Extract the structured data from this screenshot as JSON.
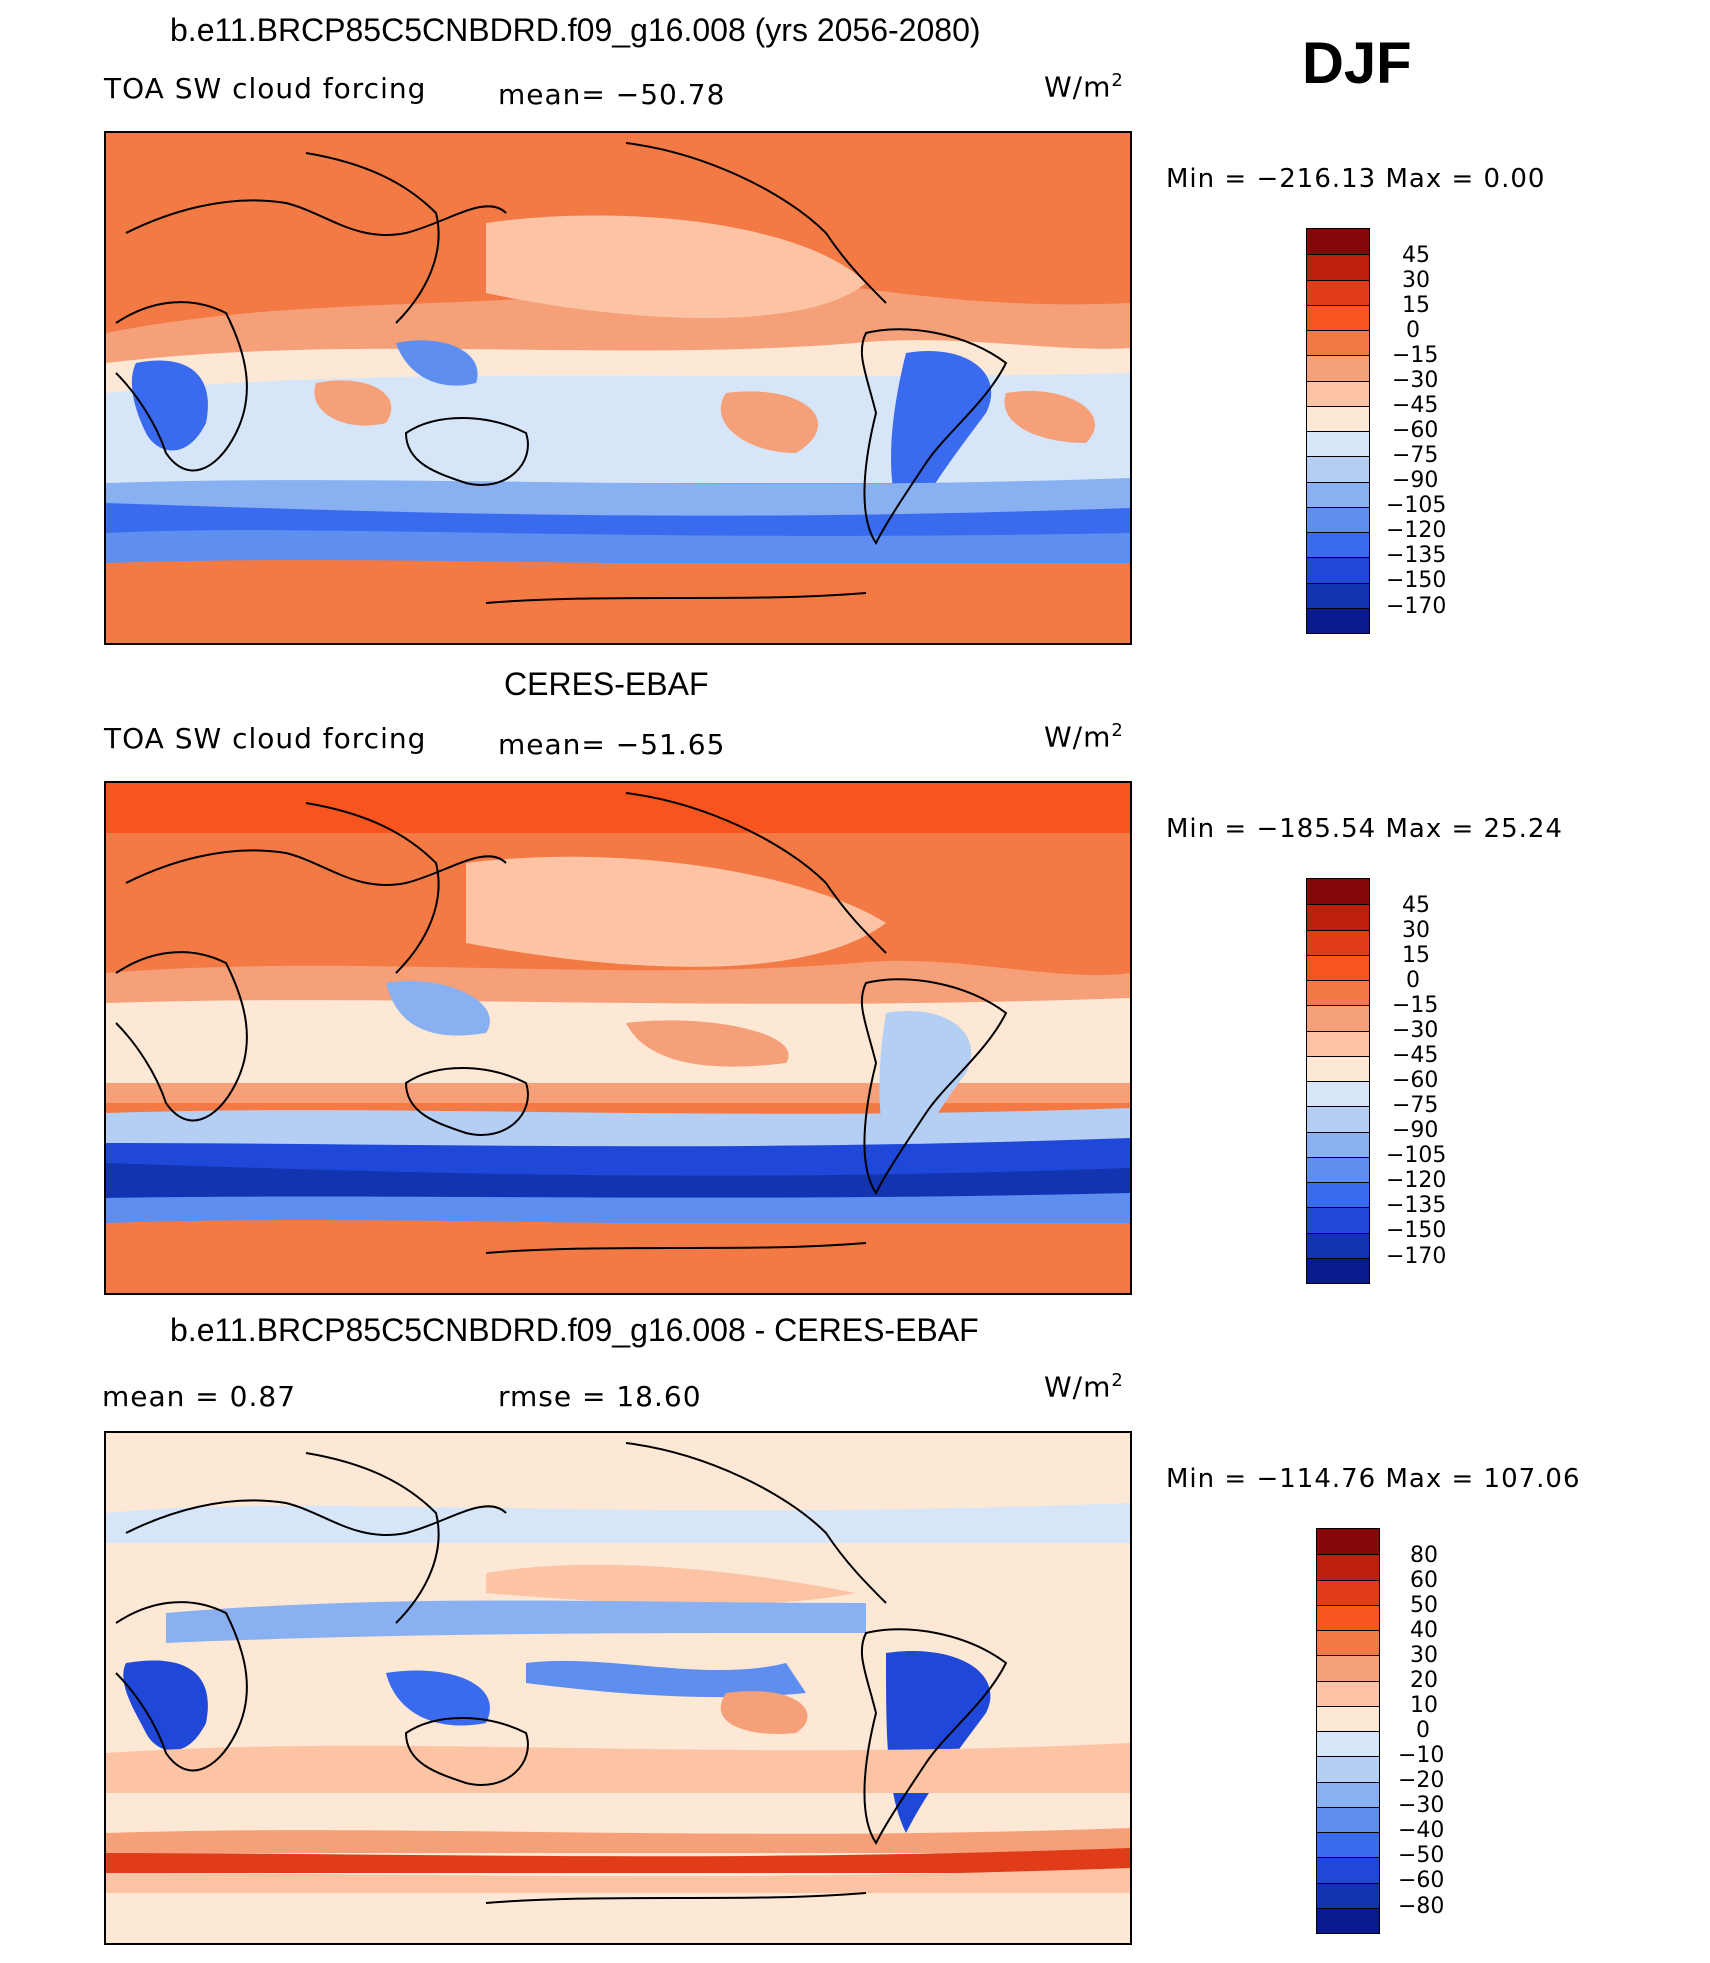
{
  "season": "DJF",
  "panels": [
    {
      "title": "b.e11.BRCP85C5CNBDRD.f09_g16.008 (yrs 2056-2080)",
      "left_label": "TOA SW cloud forcing",
      "center_label": "mean=  −50.78",
      "units": "W/m",
      "units_sup": "2",
      "minmax": "Min  =  −216.13  Max  =     0.00",
      "legend_colors": [
        "#850808",
        "#bd200e",
        "#e03c1a",
        "#f8541e",
        "#f37a45",
        "#f6a07a",
        "#fcc4a4",
        "#fde8d6",
        "#d6e6f8",
        "#b5cff4",
        "#89b0f0",
        "#5d8ef0",
        "#3a6bee",
        "#1f48d8",
        "#1234b0",
        "#081a8c"
      ],
      "legend_labels": [
        "45",
        "30",
        "15",
        "0",
        "−15",
        "−30",
        "−45",
        "−60",
        "−75",
        "−90",
        "−105",
        "−120",
        "−135",
        "−150",
        "−170"
      ]
    },
    {
      "title": "CERES-EBAF",
      "left_label": "TOA SW cloud forcing",
      "center_label": "mean=  −51.65",
      "units": "W/m",
      "units_sup": "2",
      "minmax": "Min  =  −185.54  Max  =    25.24",
      "legend_colors": [
        "#850808",
        "#bd200e",
        "#e03c1a",
        "#f8541e",
        "#f37a45",
        "#f6a07a",
        "#fcc4a4",
        "#fde8d6",
        "#d6e6f8",
        "#b5cff4",
        "#89b0f0",
        "#5d8ef0",
        "#3a6bee",
        "#1f48d8",
        "#1234b0",
        "#081a8c"
      ],
      "legend_labels": [
        "45",
        "30",
        "15",
        "0",
        "−15",
        "−30",
        "−45",
        "−60",
        "−75",
        "−90",
        "−105",
        "−120",
        "−135",
        "−150",
        "−170"
      ]
    },
    {
      "title": "b.e11.BRCP85C5CNBDRD.f09_g16.008 - CERES-EBAF",
      "left_label": "mean =     0.87",
      "center_label": "rmse  =    18.60",
      "units": "W/m",
      "units_sup": "2",
      "minmax": "Min  =  −114.76  Max  =  107.06",
      "legend_colors": [
        "#850808",
        "#bd200e",
        "#e03c1a",
        "#f8541e",
        "#f37a45",
        "#f6a07a",
        "#fcc4a4",
        "#fde8d6",
        "#d6e6f8",
        "#b5cff4",
        "#89b0f0",
        "#5d8ef0",
        "#3a6bee",
        "#1f48d8",
        "#1234b0",
        "#081a8c"
      ],
      "legend_labels": [
        "80",
        "60",
        "50",
        "40",
        "30",
        "20",
        "10",
        "0",
        "−10",
        "−20",
        "−30",
        "−40",
        "−50",
        "−60",
        "−80"
      ]
    }
  ]
}
